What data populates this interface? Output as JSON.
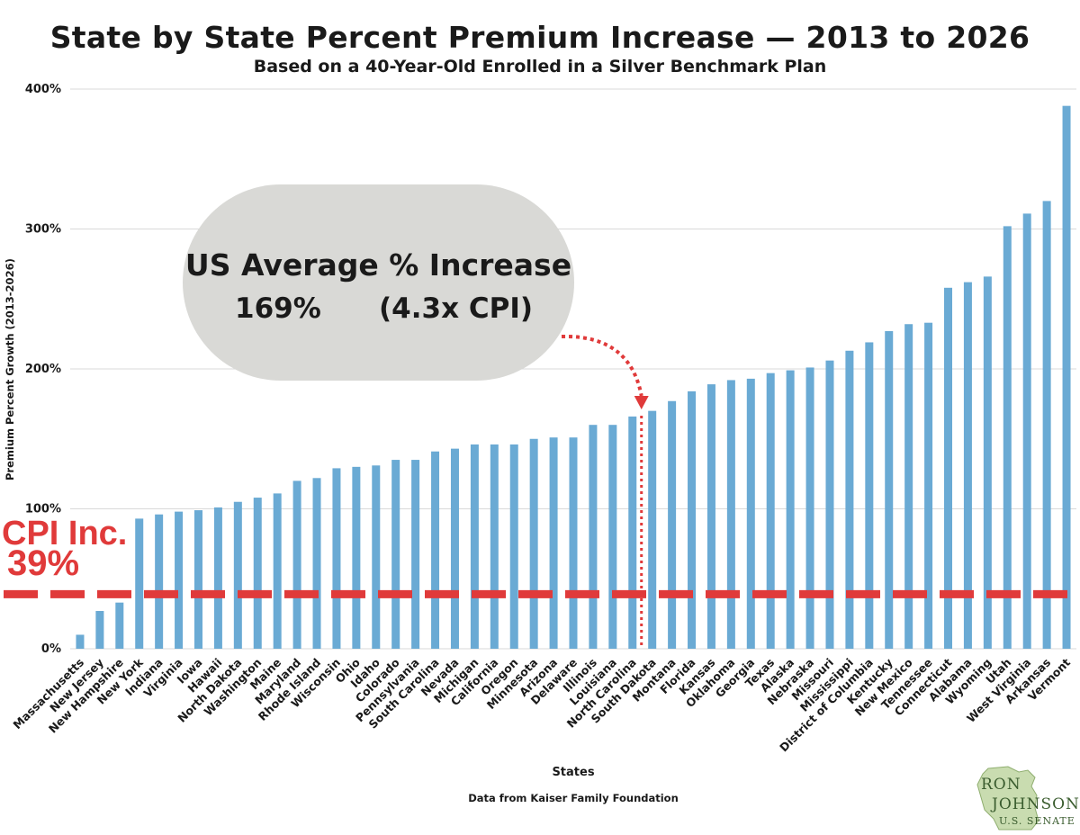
{
  "title": "State by State Percent Premium Increase — 2013 to 2026",
  "subtitle": "Based on a 40-Year-Old Enrolled in a Silver Benchmark Plan",
  "callout": {
    "line1": "US Average % Increase",
    "value": "169%",
    "cpi_multiple": "(4.3x CPI)"
  },
  "cpi": {
    "label": "CPI Inc.",
    "value": "39%",
    "level": 39,
    "color": "#e03a3a"
  },
  "source_note": "Data from Kaiser Family Foundation",
  "logo": {
    "line1": "RON",
    "line2": "JOHNSON",
    "line3": "U.S. SENATE"
  },
  "chart_data": {
    "type": "bar",
    "xlabel": "States",
    "ylabel": "Premium Percent Growth (2013-2026)",
    "ylim": [
      0,
      400
    ],
    "yticks": [
      0,
      100,
      200,
      300,
      400
    ],
    "ytick_labels": [
      "0%",
      "100%",
      "200%",
      "300%",
      "400%"
    ],
    "grid": true,
    "bar_color": "#6aaad4",
    "us_average_line_at": "North Carolina",
    "categories": [
      "Massachusetts",
      "New Jersey",
      "New Hampshire",
      "New York",
      "Indiana",
      "Virginia",
      "Iowa",
      "Hawaii",
      "North Dakota",
      "Washington",
      "Maine",
      "Maryland",
      "Rhode Island",
      "Wisconsin",
      "Ohio",
      "Idaho",
      "Colorado",
      "Pennsylvania",
      "South Carolina",
      "Nevada",
      "Michigan",
      "California",
      "Oregon",
      "Minnesota",
      "Arizona",
      "Delaware",
      "Illinois",
      "Louisiana",
      "North Carolina",
      "South Dakota",
      "Montana",
      "Florida",
      "Kansas",
      "Oklahoma",
      "Georgia",
      "Texas",
      "Alaska",
      "Nebraska",
      "Missouri",
      "Mississippi",
      "District of Columbia",
      "Kentucky",
      "New Mexico",
      "Tennessee",
      "Connecticut",
      "Alabama",
      "Wyoming",
      "Utah",
      "West Virginia",
      "Arkansas",
      "Vermont"
    ],
    "values": [
      10,
      27,
      33,
      93,
      96,
      98,
      99,
      101,
      105,
      108,
      111,
      120,
      122,
      129,
      130,
      131,
      135,
      135,
      141,
      143,
      146,
      146,
      146,
      150,
      151,
      151,
      160,
      160,
      166,
      170,
      177,
      184,
      189,
      192,
      193,
      197,
      199,
      201,
      206,
      213,
      219,
      227,
      232,
      233,
      258,
      262,
      266,
      302,
      311,
      320,
      388
    ]
  }
}
